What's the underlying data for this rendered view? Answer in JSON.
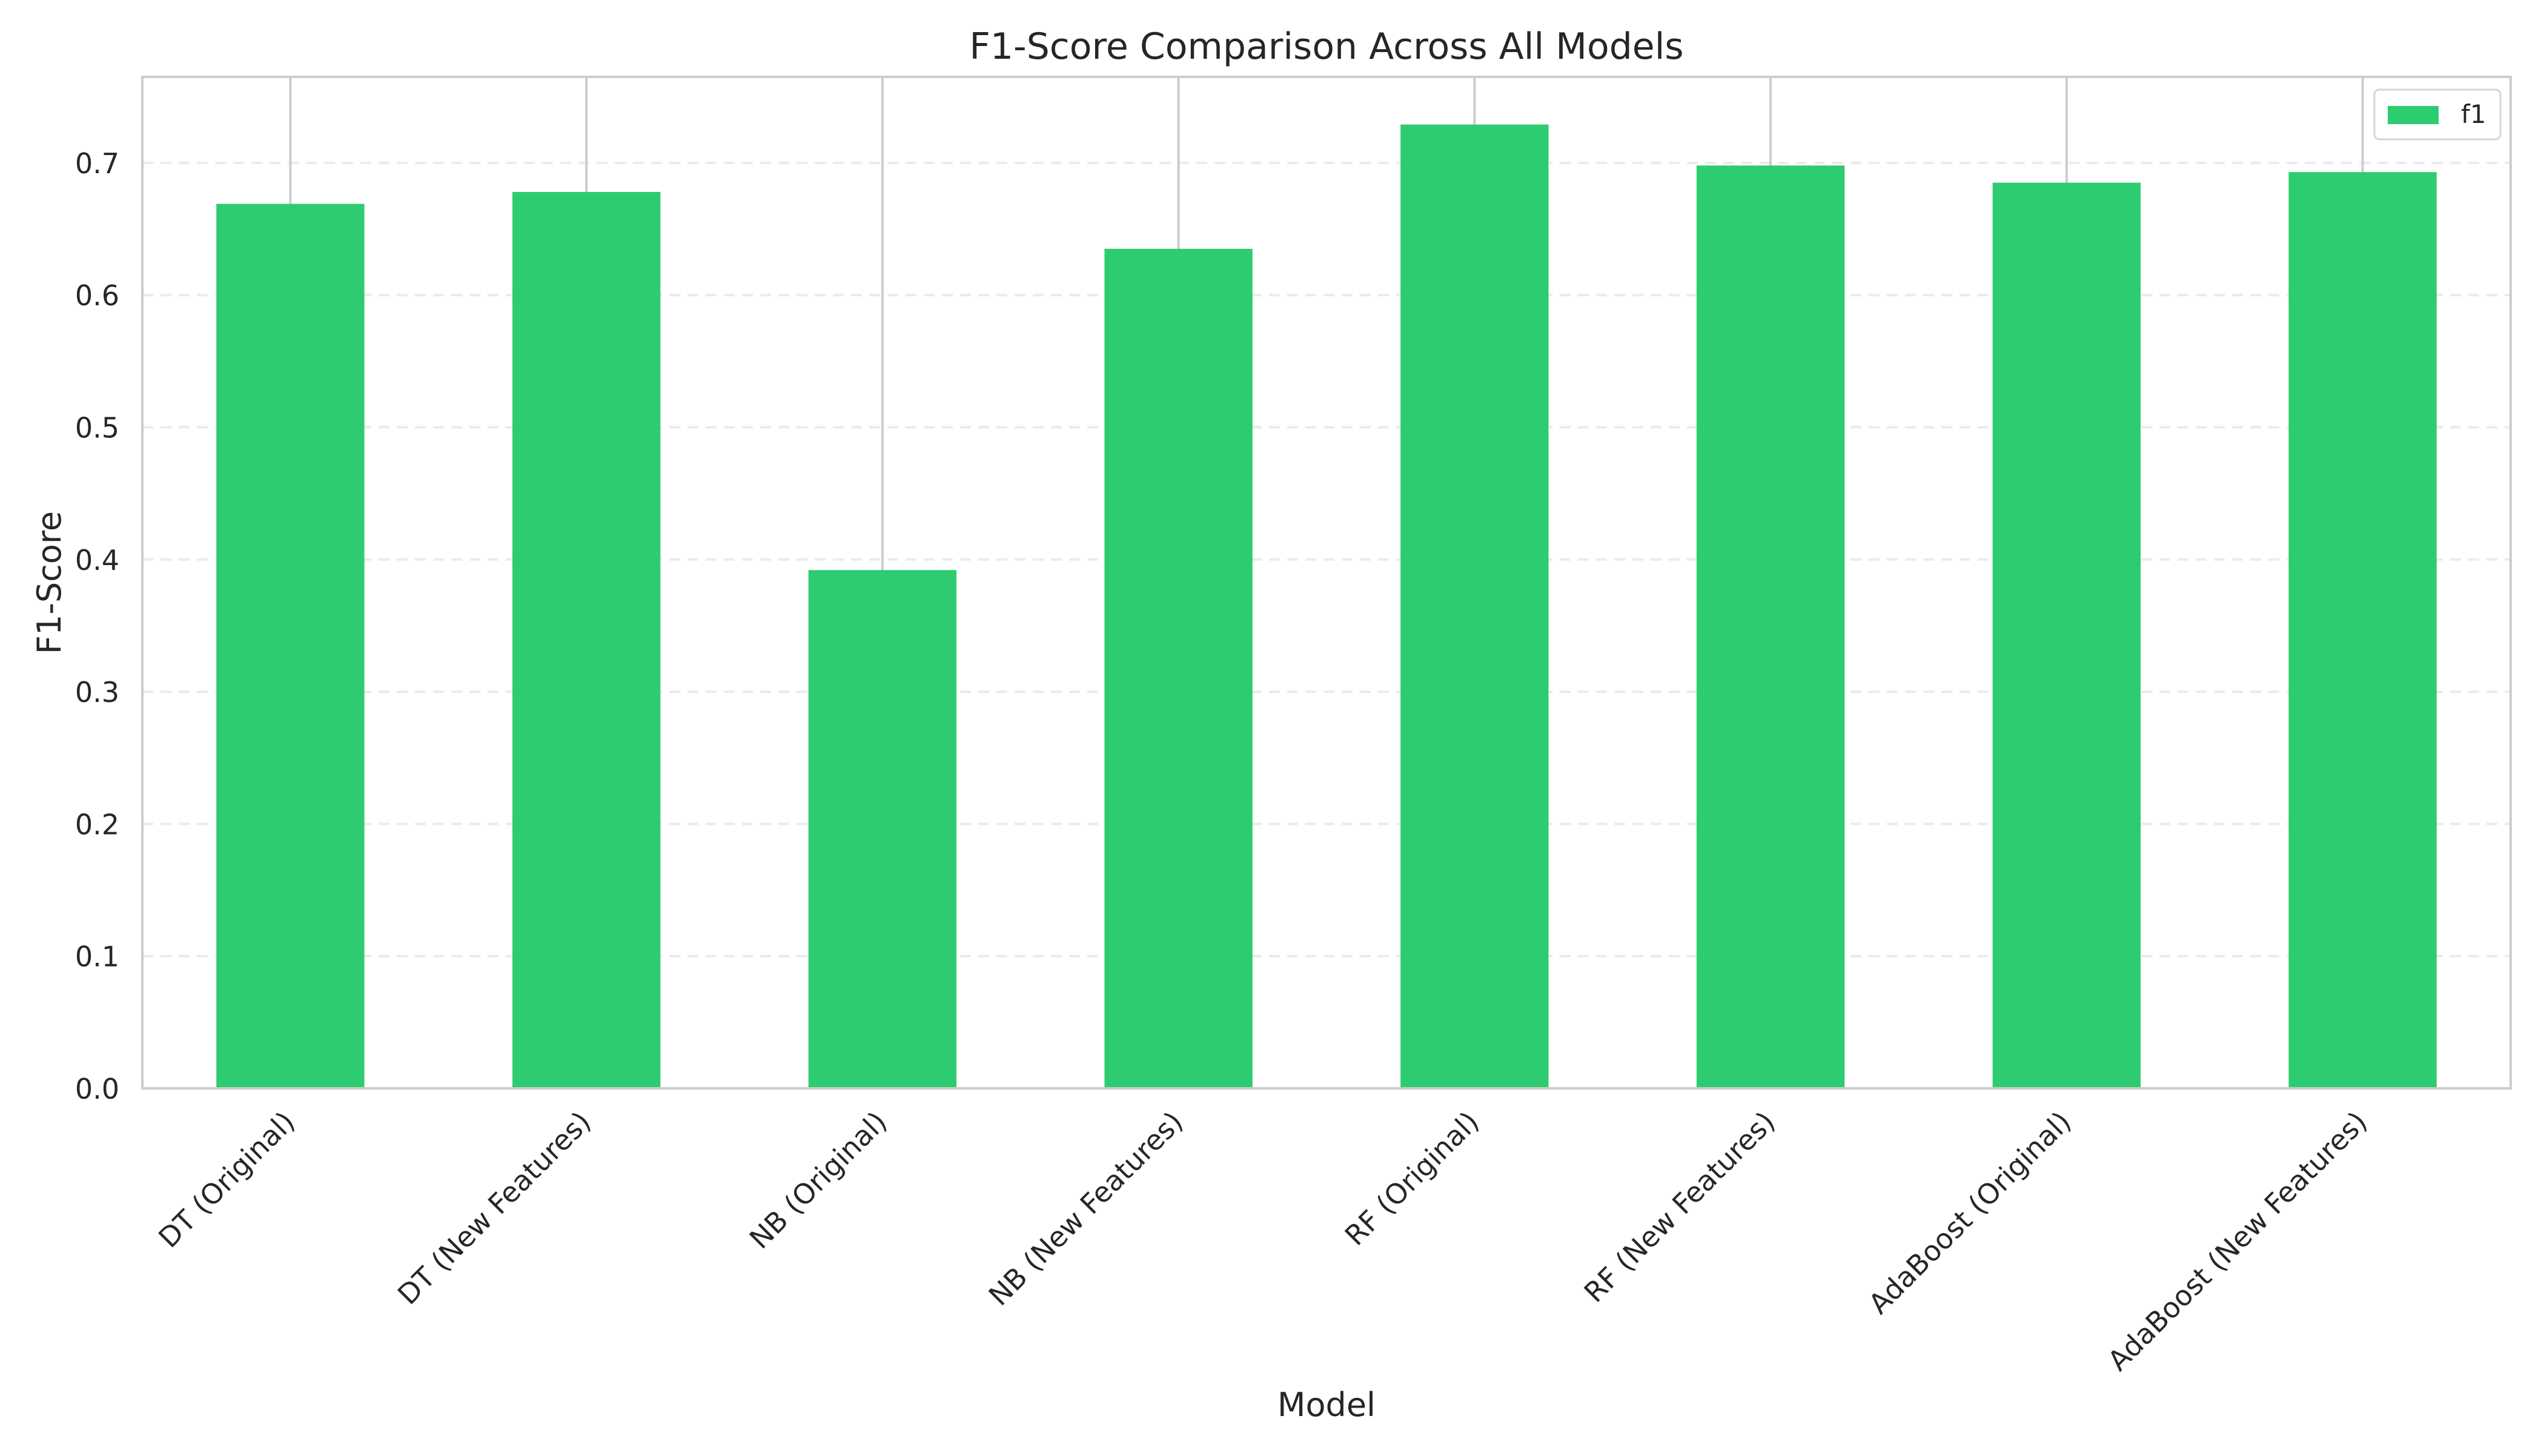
{
  "chart_data": {
    "type": "bar",
    "title": "F1-Score Comparison Across All Models",
    "xlabel": "Model",
    "ylabel": "F1-Score",
    "categories": [
      "DT (Original)",
      "DT (New Features)",
      "NB (Original)",
      "NB (New Features)",
      "RF (Original)",
      "RF (New Features)",
      "AdaBoost (Original)",
      "AdaBoost (New Features)"
    ],
    "series": [
      {
        "name": "f1",
        "values": [
          0.669,
          0.678,
          0.392,
          0.635,
          0.729,
          0.698,
          0.685,
          0.693
        ],
        "color": "#2ecc71"
      }
    ],
    "ylim": [
      0,
      0.765
    ],
    "yticks": [
      0.0,
      0.1,
      0.2,
      0.3,
      0.4,
      0.5,
      0.6,
      0.7
    ],
    "ytick_labels": [
      "0.0",
      "0.1",
      "0.2",
      "0.3",
      "0.4",
      "0.5",
      "0.6",
      "0.7"
    ],
    "grid": "horizontal-dashed",
    "legend_position": "top-right",
    "colors": {
      "bar": "#2ecc71",
      "axes": "#cccccc",
      "grid": "#ebebeb",
      "text": "#262626"
    }
  }
}
